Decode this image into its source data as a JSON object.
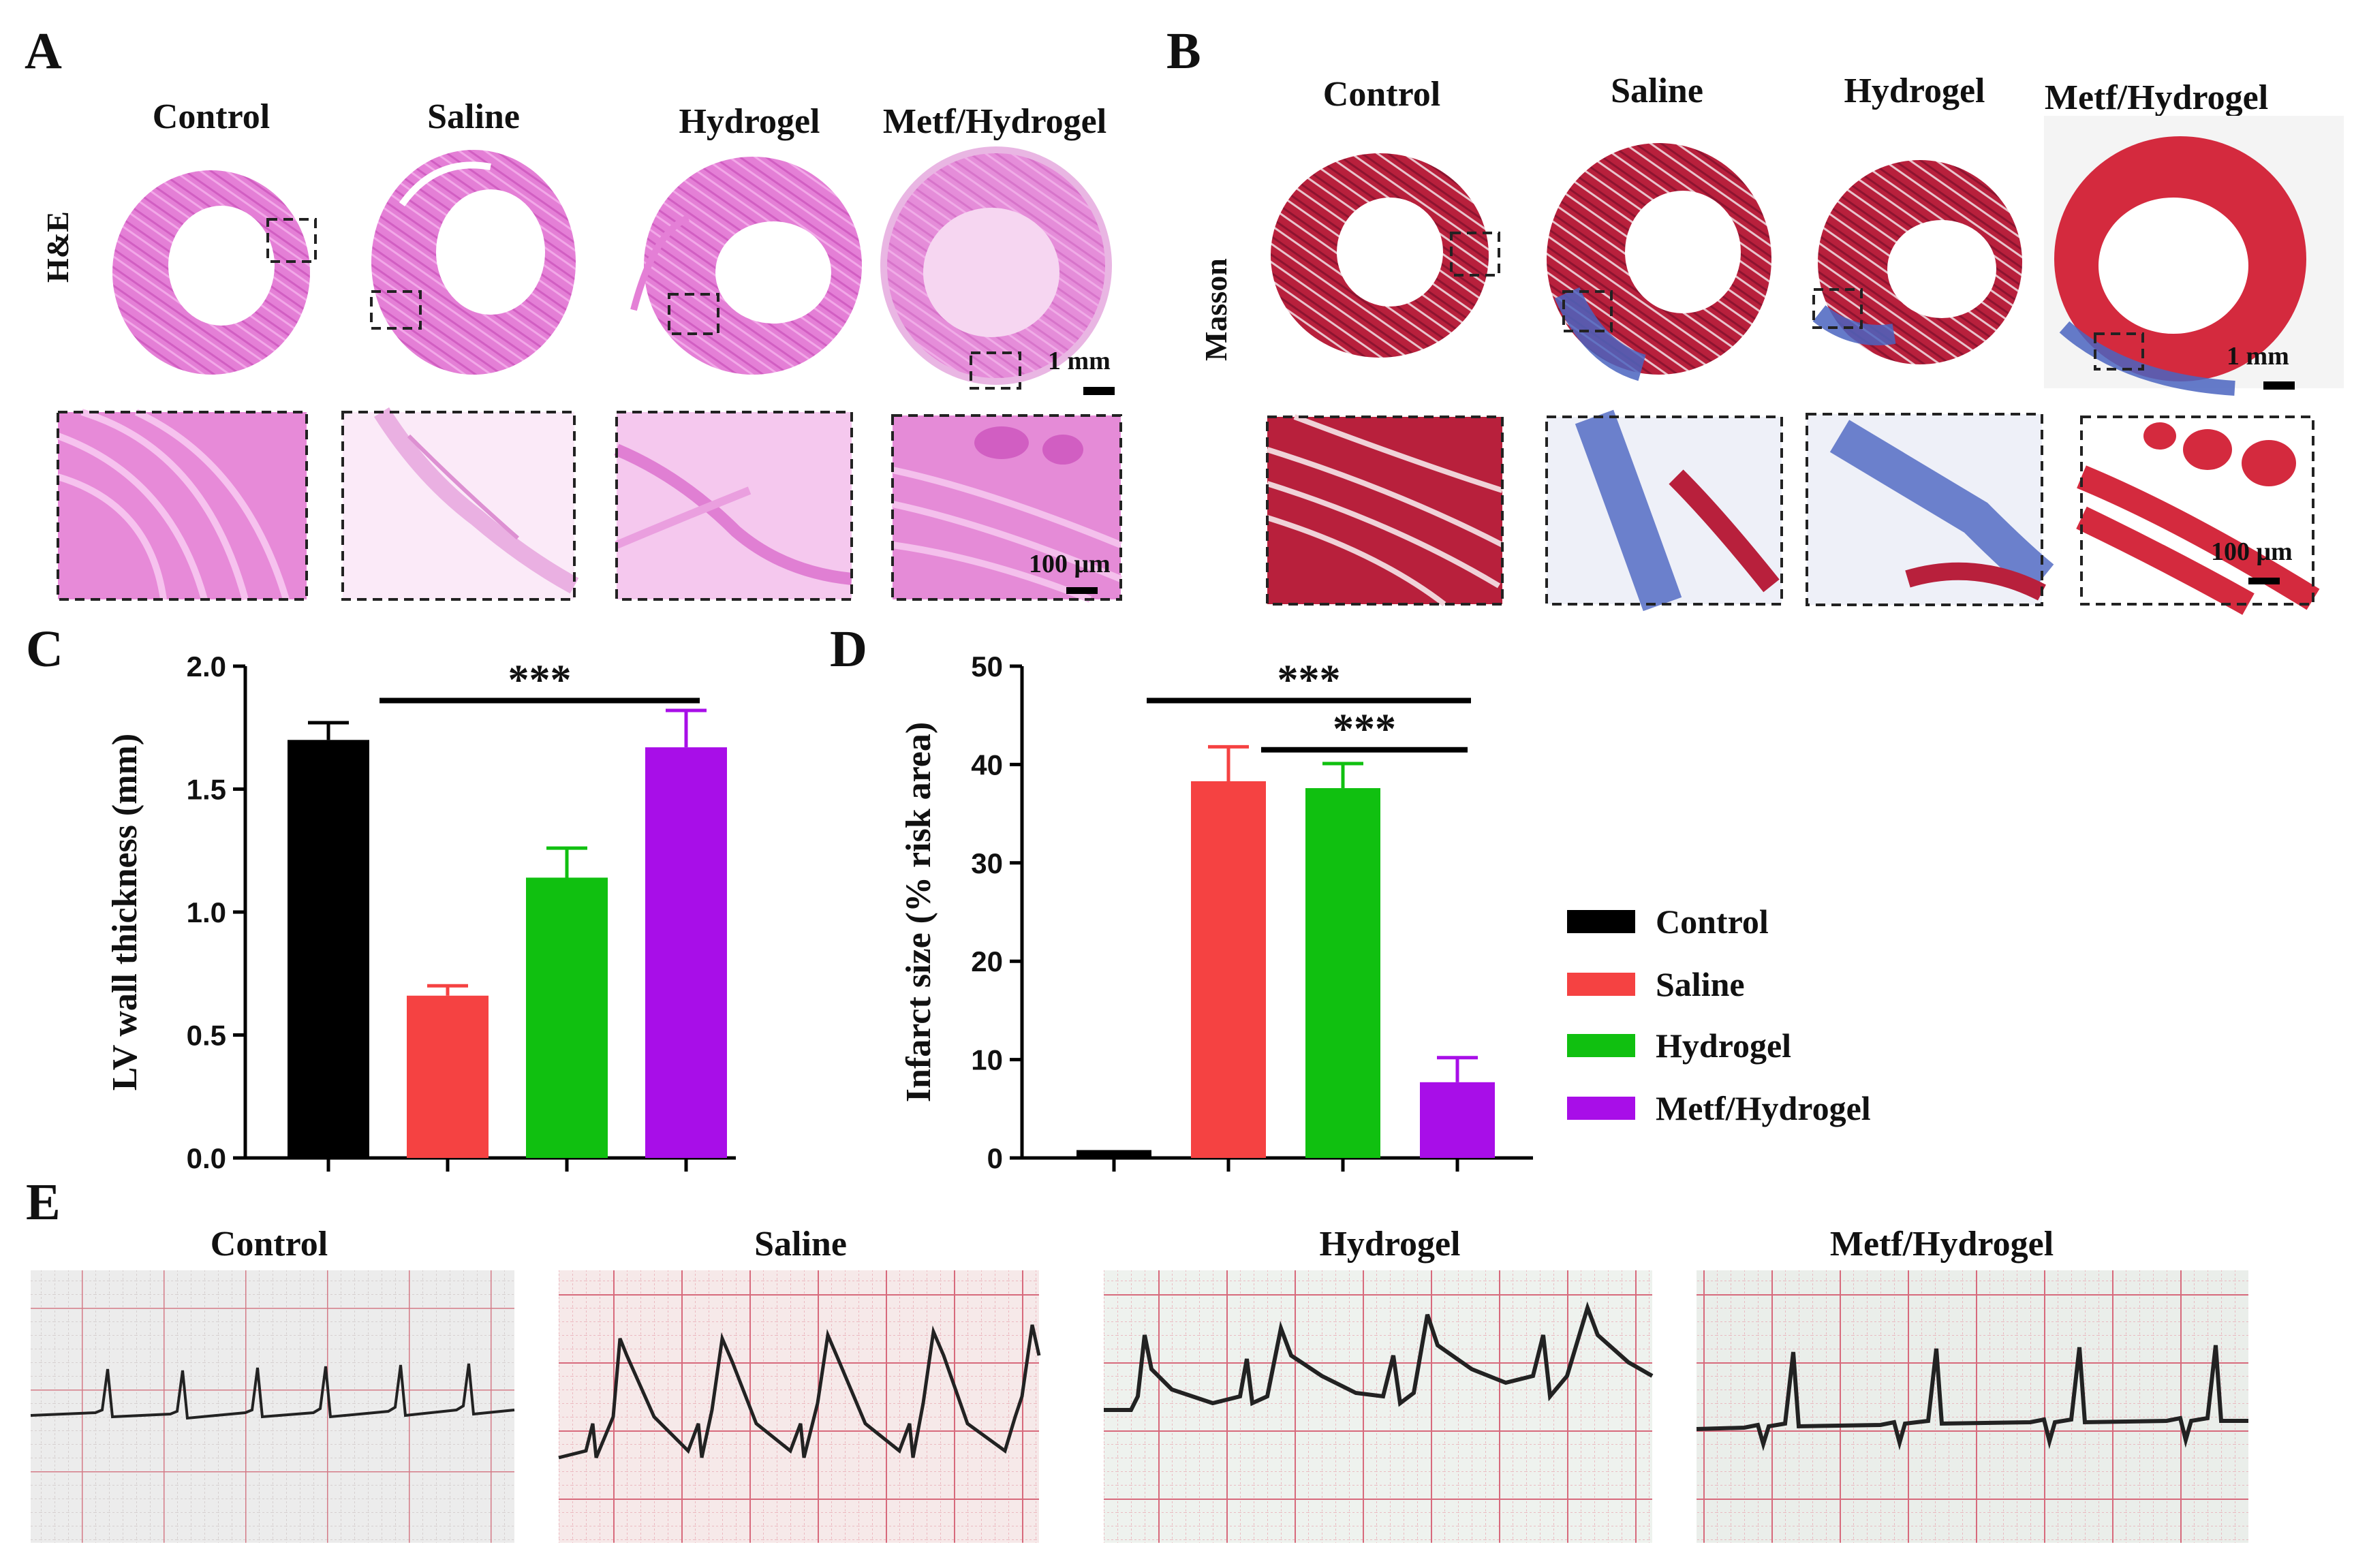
{
  "panels": {
    "A": {
      "letter": "A",
      "stain_label": "H&E",
      "groups": [
        "Control",
        "Saline",
        "Hydrogel",
        "Metf/Hydrogel"
      ],
      "scale_large": "1 mm",
      "scale_small": "100 μm"
    },
    "B": {
      "letter": "B",
      "stain_label": "Masson",
      "groups": [
        "Control",
        "Saline",
        "Hydrogel",
        "Metf/Hydrogel"
      ],
      "scale_large": "1 mm",
      "scale_small": "100 μm"
    },
    "C": {
      "letter": "C"
    },
    "D": {
      "letter": "D"
    },
    "E": {
      "letter": "E",
      "groups": [
        "Control",
        "Saline",
        "Hydrogel",
        "Metf/Hydrogel"
      ]
    }
  },
  "colors": {
    "Control": "#000000",
    "Saline": "#f54242",
    "Hydrogel": "#10c010",
    "Metf/Hydrogel": "#a80ee8",
    "he_tissue": "#e878d6",
    "masson_red": "#b8203c",
    "masson_blue": "#4a64c0",
    "ecg_grid": "#d76a7c",
    "ecg_trace": "#1a1a1a"
  },
  "legend": {
    "items": [
      "Control",
      "Saline",
      "Hydrogel",
      "Metf/Hydrogel"
    ]
  },
  "chart_data": [
    {
      "id": "C",
      "type": "bar",
      "categories": [
        "Control",
        "Saline",
        "Hydrogel",
        "Metf/Hydrogel"
      ],
      "values": [
        1.7,
        0.66,
        1.14,
        1.67
      ],
      "errors": [
        0.07,
        0.04,
        0.12,
        0.15
      ],
      "ylabel": "LV wall thickness (mm)",
      "ylim": [
        0,
        2.0
      ],
      "yticks": [
        "0.0",
        "0.5",
        "1.0",
        "1.5",
        "2.0"
      ],
      "ytick_values": [
        0,
        0.5,
        1.0,
        1.5,
        2.0
      ],
      "significance": [
        {
          "from": 1,
          "to": 3,
          "label": "***",
          "y": 1.86
        }
      ]
    },
    {
      "id": "D",
      "type": "bar",
      "categories": [
        "Control",
        "Saline",
        "Hydrogel",
        "Metf/Hydrogel"
      ],
      "values": [
        0.8,
        38.3,
        37.6,
        7.7
      ],
      "errors": [
        0,
        3.5,
        2.5,
        2.5
      ],
      "ylabel": "Infarct size (% risk area)",
      "ylim": [
        0,
        50
      ],
      "yticks": [
        "0",
        "10",
        "20",
        "30",
        "40",
        "50"
      ],
      "ytick_values": [
        0,
        10,
        20,
        30,
        40,
        50
      ],
      "significance": [
        {
          "from": 1,
          "to": 3,
          "label": "***",
          "y": 46.5
        },
        {
          "from": 2,
          "to": 3,
          "label": "***",
          "y": 41.5
        }
      ]
    }
  ]
}
